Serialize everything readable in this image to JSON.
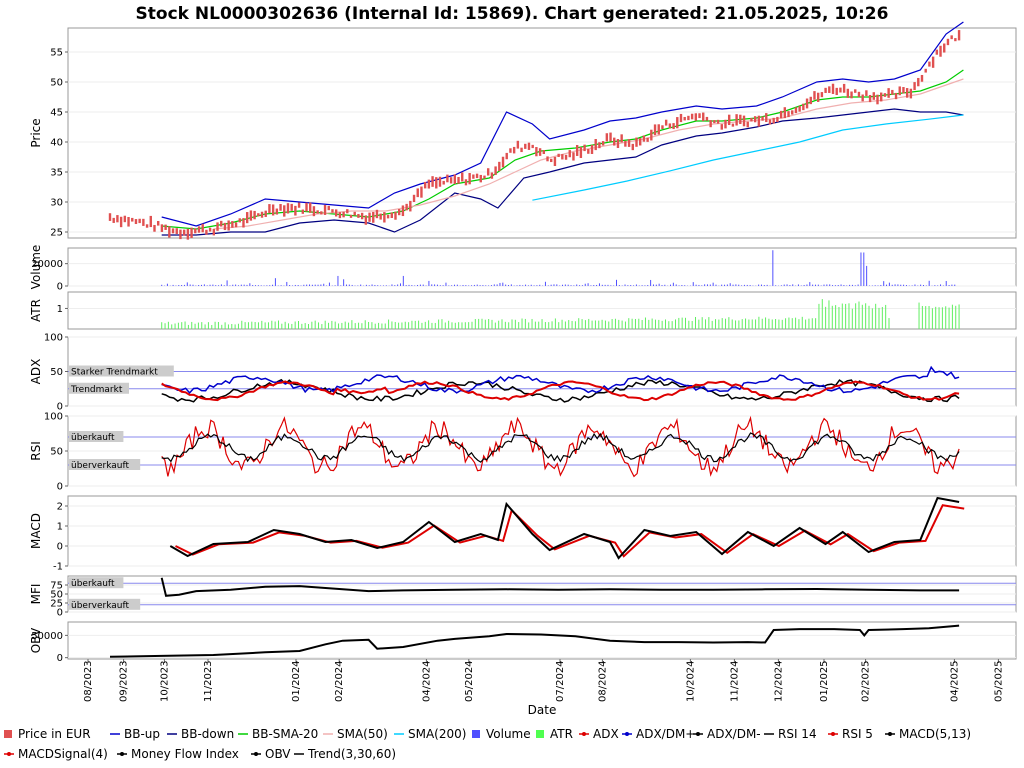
{
  "chart_data": {
    "type": "line",
    "title": "Stock NL0000302636 (Internal Id: 15869). Chart generated: 21.05.2025, 10:26",
    "xlabel": "Date",
    "x_ticks": [
      "08/2023",
      "09/2023",
      "10/2023",
      "11/2023",
      "01/2024",
      "02/2024",
      "04/2024",
      "05/2024",
      "07/2024",
      "08/2024",
      "10/2024",
      "11/2024",
      "12/2024",
      "01/2025",
      "02/2025",
      "04/2025",
      "05/2025"
    ],
    "panels": [
      {
        "id": "price",
        "ylabel": "Price",
        "yticks": [
          "25",
          "30",
          "35",
          "40",
          "45",
          "50",
          "55"
        ],
        "ylim": [
          24,
          59
        ],
        "series": [
          {
            "name": "Price in EUR",
            "color": "#e05050",
            "points": [
              [
                0.0,
                27.5
              ],
              [
                0.04,
                26.5
              ],
              [
                0.08,
                25.0
              ],
              [
                0.12,
                25.5
              ],
              [
                0.16,
                27.0
              ],
              [
                0.19,
                29.0
              ],
              [
                0.22,
                29.0
              ],
              [
                0.26,
                28.5
              ],
              [
                0.3,
                27.5
              ],
              [
                0.34,
                28.5
              ],
              [
                0.37,
                33.0
              ],
              [
                0.4,
                33.5
              ],
              [
                0.44,
                34.5
              ],
              [
                0.47,
                39.0
              ],
              [
                0.49,
                39.5
              ],
              [
                0.51,
                37.0
              ],
              [
                0.54,
                38.0
              ],
              [
                0.58,
                40.5
              ],
              [
                0.61,
                39.5
              ],
              [
                0.64,
                42.5
              ],
              [
                0.68,
                44.5
              ],
              [
                0.71,
                43.0
              ],
              [
                0.74,
                43.5
              ],
              [
                0.77,
                44.0
              ],
              [
                0.8,
                46.0
              ],
              [
                0.84,
                49.0
              ],
              [
                0.87,
                48.0
              ],
              [
                0.9,
                47.5
              ],
              [
                0.93,
                48.5
              ],
              [
                0.96,
                55.0
              ],
              [
                0.98,
                57.5
              ]
            ]
          },
          {
            "name": "BB-up",
            "color": "#0000cc",
            "points": [
              [
                0.06,
                27.5
              ],
              [
                0.1,
                26.0
              ],
              [
                0.14,
                28.0
              ],
              [
                0.18,
                30.5
              ],
              [
                0.22,
                30.0
              ],
              [
                0.26,
                29.5
              ],
              [
                0.3,
                29.0
              ],
              [
                0.33,
                31.5
              ],
              [
                0.36,
                33.0
              ],
              [
                0.4,
                34.5
              ],
              [
                0.43,
                36.5
              ],
              [
                0.46,
                45.0
              ],
              [
                0.49,
                43.0
              ],
              [
                0.51,
                40.5
              ],
              [
                0.55,
                42.0
              ],
              [
                0.58,
                43.5
              ],
              [
                0.61,
                44.0
              ],
              [
                0.64,
                45.0
              ],
              [
                0.68,
                46.0
              ],
              [
                0.71,
                45.5
              ],
              [
                0.75,
                46.0
              ],
              [
                0.78,
                47.5
              ],
              [
                0.82,
                50.0
              ],
              [
                0.85,
                50.5
              ],
              [
                0.88,
                50.0
              ],
              [
                0.91,
                50.5
              ],
              [
                0.94,
                52.0
              ],
              [
                0.97,
                58.0
              ],
              [
                0.99,
                60.0
              ]
            ]
          },
          {
            "name": "BB-down",
            "color": "#000080",
            "points": [
              [
                0.06,
                24.5
              ],
              [
                0.1,
                24.5
              ],
              [
                0.14,
                25.0
              ],
              [
                0.18,
                25.0
              ],
              [
                0.22,
                26.5
              ],
              [
                0.26,
                27.0
              ],
              [
                0.3,
                26.5
              ],
              [
                0.33,
                25.0
              ],
              [
                0.36,
                27.0
              ],
              [
                0.4,
                31.5
              ],
              [
                0.43,
                30.5
              ],
              [
                0.45,
                29.0
              ],
              [
                0.48,
                34.0
              ],
              [
                0.51,
                35.0
              ],
              [
                0.55,
                36.5
              ],
              [
                0.58,
                37.0
              ],
              [
                0.61,
                37.5
              ],
              [
                0.64,
                39.5
              ],
              [
                0.68,
                41.0
              ],
              [
                0.71,
                41.5
              ],
              [
                0.75,
                42.5
              ],
              [
                0.78,
                43.5
              ],
              [
                0.82,
                44.0
              ],
              [
                0.85,
                44.5
              ],
              [
                0.88,
                45.0
              ],
              [
                0.91,
                45.5
              ],
              [
                0.94,
                45.0
              ],
              [
                0.97,
                45.0
              ],
              [
                0.99,
                44.5
              ]
            ]
          },
          {
            "name": "BB-SMA-20",
            "color": "#00cc00",
            "points": [
              [
                0.06,
                26.0
              ],
              [
                0.1,
                25.5
              ],
              [
                0.14,
                26.5
              ],
              [
                0.18,
                28.0
              ],
              [
                0.22,
                28.5
              ],
              [
                0.26,
                28.0
              ],
              [
                0.3,
                27.5
              ],
              [
                0.34,
                28.5
              ],
              [
                0.37,
                30.5
              ],
              [
                0.4,
                33.0
              ],
              [
                0.44,
                34.0
              ],
              [
                0.47,
                37.0
              ],
              [
                0.5,
                38.5
              ],
              [
                0.54,
                39.0
              ],
              [
                0.58,
                40.0
              ],
              [
                0.61,
                40.5
              ],
              [
                0.64,
                42.0
              ],
              [
                0.68,
                43.5
              ],
              [
                0.71,
                43.5
              ],
              [
                0.75,
                44.0
              ],
              [
                0.78,
                45.0
              ],
              [
                0.82,
                47.0
              ],
              [
                0.85,
                47.5
              ],
              [
                0.88,
                47.5
              ],
              [
                0.91,
                48.0
              ],
              [
                0.94,
                48.5
              ],
              [
                0.97,
                50.0
              ],
              [
                0.99,
                52.0
              ]
            ]
          },
          {
            "name": "SMA(50)",
            "color": "#f0b0b0",
            "points": [
              [
                0.12,
                25.5
              ],
              [
                0.16,
                26.0
              ],
              [
                0.2,
                27.0
              ],
              [
                0.24,
                28.0
              ],
              [
                0.28,
                28.5
              ],
              [
                0.32,
                28.5
              ],
              [
                0.36,
                29.5
              ],
              [
                0.4,
                31.0
              ],
              [
                0.44,
                33.0
              ],
              [
                0.47,
                35.0
              ],
              [
                0.5,
                37.0
              ],
              [
                0.54,
                38.5
              ],
              [
                0.58,
                39.5
              ],
              [
                0.62,
                40.5
              ],
              [
                0.66,
                42.0
              ],
              [
                0.7,
                43.0
              ],
              [
                0.74,
                43.5
              ],
              [
                0.78,
                44.0
              ],
              [
                0.82,
                45.5
              ],
              [
                0.86,
                46.5
              ],
              [
                0.9,
                47.0
              ],
              [
                0.94,
                48.0
              ],
              [
                0.97,
                49.5
              ],
              [
                0.99,
                50.5
              ]
            ]
          },
          {
            "name": "SMA(200)",
            "color": "#00ccff",
            "points": [
              [
                0.49,
                30.3
              ],
              [
                0.55,
                32.0
              ],
              [
                0.6,
                33.5
              ],
              [
                0.65,
                35.2
              ],
              [
                0.7,
                37.0
              ],
              [
                0.75,
                38.5
              ],
              [
                0.8,
                40.0
              ],
              [
                0.85,
                42.0
              ],
              [
                0.9,
                43.0
              ],
              [
                0.95,
                43.8
              ],
              [
                0.99,
                44.5
              ]
            ]
          }
        ]
      },
      {
        "id": "volume",
        "ylabel": "Volume",
        "yticks": [
          "0",
          "20000"
        ],
        "ylim": [
          0,
          34000
        ]
      },
      {
        "id": "atr",
        "ylabel": "ATR",
        "yticks": [
          "1"
        ],
        "ylim": [
          0,
          1.8
        ]
      },
      {
        "id": "adx",
        "ylabel": "ADX",
        "yticks": [
          "0",
          "50",
          "100"
        ],
        "ylim": [
          0,
          100
        ],
        "zones": [
          {
            "label": "Starker Trendmarkt",
            "value": 50
          },
          {
            "label": "Trendmarkt",
            "value": 25
          }
        ]
      },
      {
        "id": "rsi",
        "ylabel": "RSI",
        "yticks": [
          "0",
          "50",
          "100"
        ],
        "ylim": [
          0,
          100
        ],
        "zones": [
          {
            "label": "überkauft",
            "value": 70
          },
          {
            "label": "überverkauft",
            "value": 30
          }
        ]
      },
      {
        "id": "macd",
        "ylabel": "MACD",
        "yticks": [
          "-1",
          "0",
          "1",
          "2"
        ],
        "ylim": [
          -1,
          2.5
        ]
      },
      {
        "id": "mfi",
        "ylabel": "MFI",
        "yticks": [
          "0",
          "25",
          "50",
          "75"
        ],
        "ylim": [
          0,
          100
        ],
        "zones": [
          {
            "label": "überkauft",
            "value": 80
          },
          {
            "label": "überverkauft",
            "value": 20
          }
        ]
      },
      {
        "id": "obv",
        "ylabel": "OBV",
        "yticks": [
          "0",
          "50000"
        ],
        "ylim": [
          -3000,
          80000
        ]
      }
    ],
    "legend_placement": "bottom",
    "legend": [
      {
        "name": "Price in EUR",
        "color": "#e05050",
        "glyph": "box"
      },
      {
        "name": "BB-up",
        "color": "#0000cc",
        "glyph": "line"
      },
      {
        "name": "BB-down",
        "color": "#000080",
        "glyph": "line"
      },
      {
        "name": "BB-SMA-20",
        "color": "#00cc00",
        "glyph": "line"
      },
      {
        "name": "SMA(50)",
        "color": "#f0b0b0",
        "glyph": "line"
      },
      {
        "name": "SMA(200)",
        "color": "#00ccff",
        "glyph": "line"
      },
      {
        "name": "Volume",
        "color": "#5050ff",
        "glyph": "box"
      },
      {
        "name": "ATR",
        "color": "#50ff50",
        "glyph": "box"
      },
      {
        "name": "ADX",
        "color": "#dd0000",
        "glyph": "dotline"
      },
      {
        "name": "ADX/DM+",
        "color": "#0000cc",
        "glyph": "dotline"
      },
      {
        "name": "ADX/DM-",
        "color": "#000000",
        "glyph": "dotline"
      },
      {
        "name": "RSI 14",
        "color": "#000000",
        "glyph": "line"
      },
      {
        "name": "RSI 5",
        "color": "#dd0000",
        "glyph": "dotline"
      },
      {
        "name": "MACD(5,13)",
        "color": "#000000",
        "glyph": "dotline"
      },
      {
        "name": "MACDSignal(4)",
        "color": "#dd0000",
        "glyph": "dotline"
      },
      {
        "name": "Money Flow Index",
        "color": "#000000",
        "glyph": "dotline"
      },
      {
        "name": "OBV",
        "color": "#000000",
        "glyph": "dotline"
      },
      {
        "name": "Trend(3,30,60)",
        "color": "#000000",
        "glyph": "line"
      }
    ]
  }
}
